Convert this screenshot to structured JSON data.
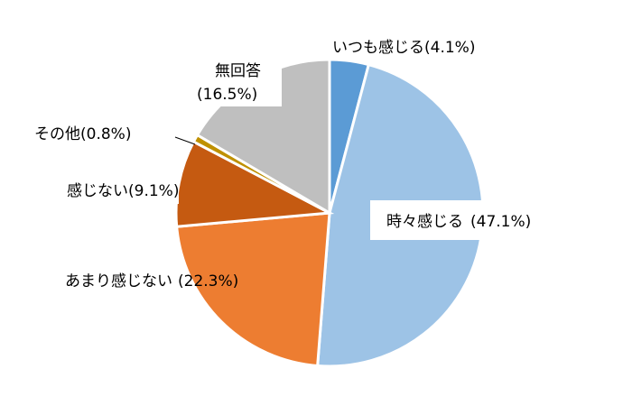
{
  "chart_data": {
    "type": "pie",
    "slices": [
      {
        "label": "いつも感じる",
        "pct_text": "(4.1%)",
        "value": 4.1,
        "color": "#5b9bd5"
      },
      {
        "label": "時々感じる",
        "pct_text": "(47.1%)",
        "value": 47.1,
        "color": "#9dc3e6"
      },
      {
        "label": "あまり感じない",
        "pct_text": "(22.3%)",
        "value": 22.3,
        "color": "#ed7d31"
      },
      {
        "label": "感じない",
        "pct_text": "(9.1%)",
        "value": 9.1,
        "color": "#c55a11"
      },
      {
        "label": "その他",
        "pct_text": "(0.8%)",
        "value": 0.8,
        "color": "#bf9000"
      },
      {
        "label": "無回答",
        "pct_text": "(16.5%)",
        "value": 16.5,
        "color": "#bfbfbf"
      }
    ]
  }
}
